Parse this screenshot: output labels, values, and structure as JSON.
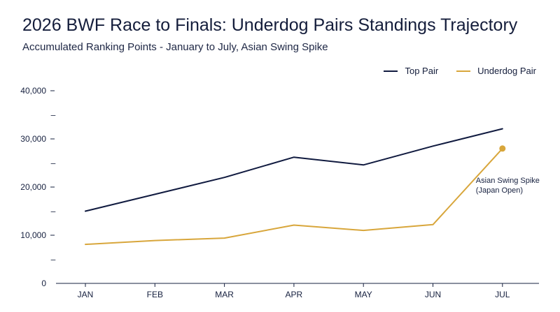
{
  "header": {
    "title": "2026 BWF Race to Finals: Underdog Pairs Standings Trajectory",
    "subtitle": "Accumulated Ranking Points - January to July, Asian Swing Spike"
  },
  "chart_data": {
    "type": "line",
    "categories": [
      "JAN",
      "FEB",
      "MAR",
      "APR",
      "MAY",
      "JUN",
      "JUL"
    ],
    "series": [
      {
        "name": "Top Pair",
        "color": "#101a3f",
        "values": [
          15000,
          18500,
          22000,
          26200,
          24600,
          28500,
          32100
        ]
      },
      {
        "name": "Underdog Pair",
        "color": "#d8a63b",
        "values": [
          8100,
          8900,
          9400,
          12100,
          11000,
          12200,
          28000
        ]
      }
    ],
    "ylim": [
      0,
      40000
    ],
    "y_ticks": [
      0,
      10000,
      20000,
      30000,
      40000
    ],
    "y_tick_labels": [
      "0",
      "10,000",
      "20,000",
      "30,000",
      "40,000"
    ],
    "minor_y_ticks": [
      5000,
      15000,
      25000,
      35000
    ],
    "minor_tick_label": "–",
    "legend_position": "top-right",
    "grid": false,
    "annotation": {
      "series": "Underdog Pair",
      "category": "JUL",
      "lines": [
        "Asian Swing Spike",
        "(Japan Open)"
      ]
    }
  }
}
